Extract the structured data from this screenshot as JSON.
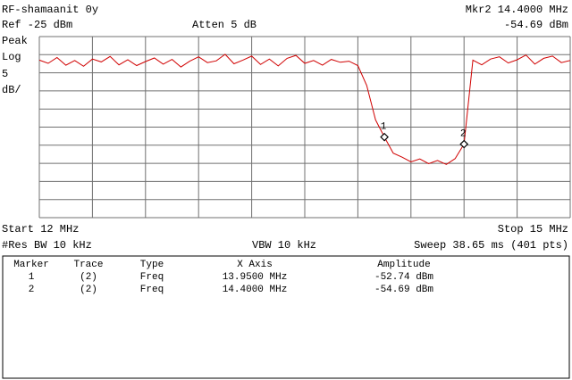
{
  "chart_data": {
    "type": "line",
    "title": "RF-shamaanit 0y",
    "reference": "Ref -25 dBm",
    "attenuation": "Atten 5 dB",
    "marker_readout": {
      "frequency": "Mkr2  14.4000 MHz",
      "amplitude": "-54.69 dBm"
    },
    "detector": "Peak",
    "scale_type": "Log",
    "scale_value": "5",
    "scale_unit": "dB/",
    "start": "Start 12 MHz",
    "stop": "Stop 15 MHz",
    "res_bw": "#Res BW 10 kHz",
    "vbw": "VBW 10 kHz",
    "sweep": "Sweep 38.65 ms (401 pts)",
    "xlim": [
      12,
      15
    ],
    "ylim": [
      -75,
      -25
    ],
    "xticks": [
      12,
      12.3,
      12.6,
      12.9,
      13.2,
      13.5,
      13.8,
      14.1,
      14.4,
      14.7,
      15
    ],
    "yticks": [
      -75,
      -70,
      -65,
      -60,
      -55,
      -50,
      -45,
      -40,
      -35,
      -30,
      -25
    ],
    "grid": true,
    "color": "#d00000",
    "x": [
      12.0,
      12.05,
      12.1,
      12.15,
      12.2,
      12.25,
      12.3,
      12.35,
      12.4,
      12.45,
      12.5,
      12.55,
      12.6,
      12.65,
      12.7,
      12.75,
      12.8,
      12.85,
      12.9,
      12.95,
      13.0,
      13.05,
      13.1,
      13.15,
      13.2,
      13.25,
      13.3,
      13.35,
      13.4,
      13.45,
      13.5,
      13.55,
      13.6,
      13.65,
      13.7,
      13.75,
      13.8,
      13.85,
      13.9,
      13.95,
      14.0,
      14.05,
      14.1,
      14.15,
      14.2,
      14.25,
      14.3,
      14.35,
      14.4,
      14.45,
      14.5,
      14.55,
      14.6,
      14.65,
      14.7,
      14.75,
      14.8,
      14.85,
      14.9,
      14.95,
      15.0
    ],
    "values": [
      -31.5,
      -32.4,
      -30.8,
      -32.9,
      -31.6,
      -33.2,
      -31.2,
      -32.0,
      -30.5,
      -32.8,
      -31.4,
      -33.0,
      -31.9,
      -30.9,
      -32.6,
      -31.3,
      -33.4,
      -31.8,
      -30.6,
      -32.2,
      -31.7,
      -29.9,
      -32.5,
      -31.5,
      -30.4,
      -32.7,
      -31.2,
      -33.1,
      -31.0,
      -30.2,
      -32.4,
      -31.6,
      -32.9,
      -31.3,
      -32.1,
      -31.8,
      -33.0,
      -38.5,
      -48.0,
      -52.74,
      -57.2,
      -58.3,
      -59.6,
      -58.8,
      -60.1,
      -59.2,
      -60.3,
      -58.7,
      -54.69,
      -31.5,
      -32.8,
      -31.2,
      -30.6,
      -32.3,
      -31.4,
      -30.1,
      -32.6,
      -31.0,
      -30.4,
      -32.2,
      -31.6
    ],
    "markers": [
      {
        "label": "1",
        "x": 13.95,
        "y": -52.74
      },
      {
        "label": "2",
        "x": 14.4,
        "y": -54.69
      }
    ]
  },
  "table": {
    "headers": [
      "Marker",
      "Trace",
      "Type",
      "X Axis",
      "Amplitude"
    ],
    "rows": [
      [
        "1",
        "(2)",
        "Freq",
        "13.9500 MHz",
        "-52.74 dBm"
      ],
      [
        "2",
        "(2)",
        "Freq",
        "14.4000 MHz",
        "-54.69 dBm"
      ]
    ]
  }
}
